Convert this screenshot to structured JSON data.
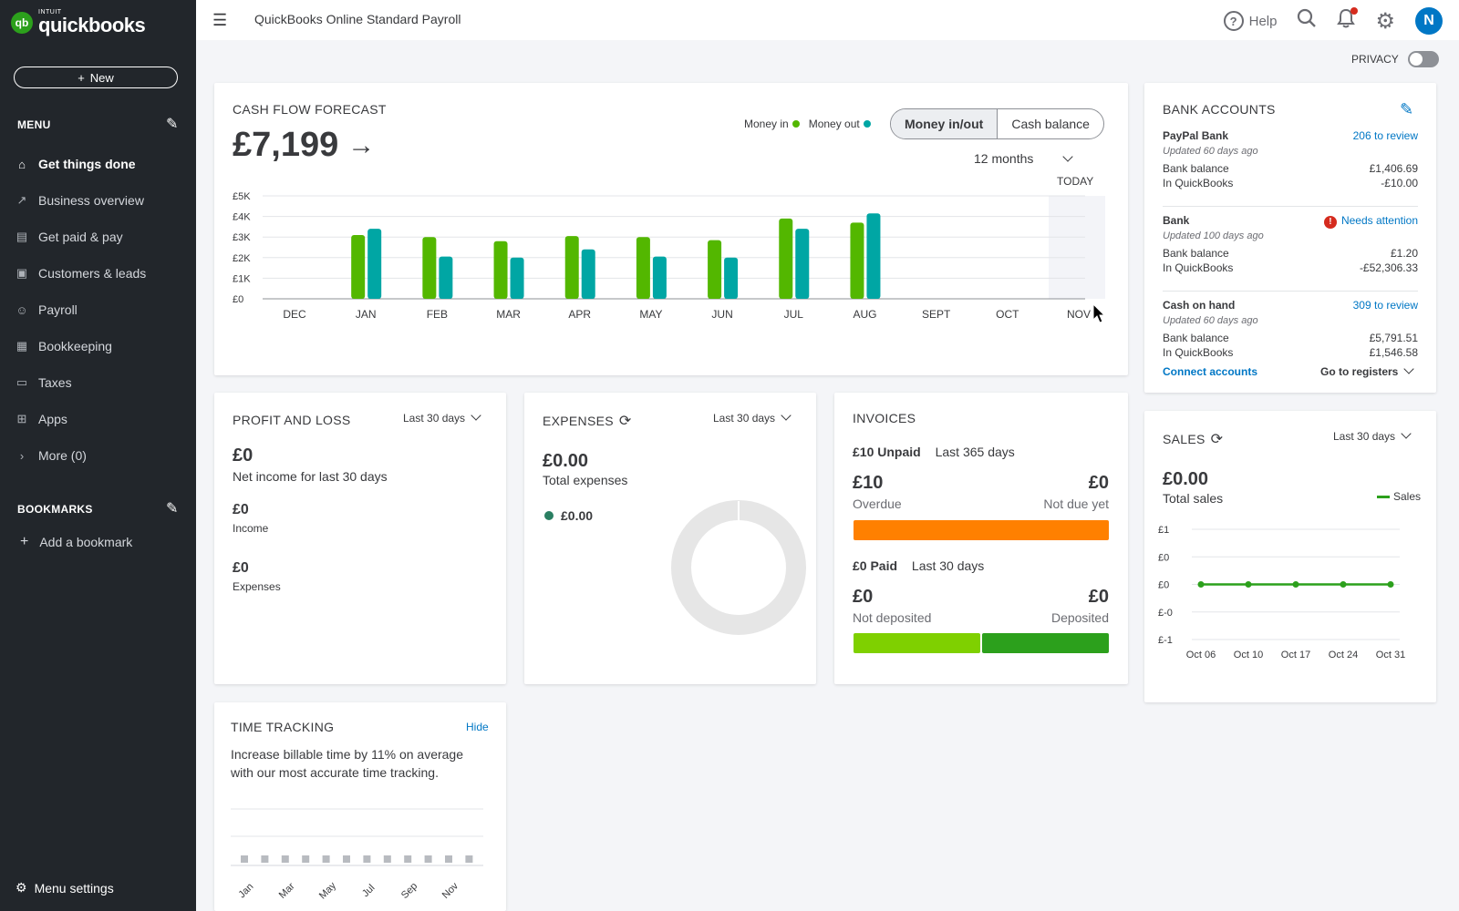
{
  "sidebar": {
    "logo_small": "INTUIT",
    "logo_big": "quickbooks",
    "new_label": "New",
    "menu_title": "MENU",
    "items": [
      {
        "label": "Get things done",
        "icon": "home-icon",
        "glyph": "⌂"
      },
      {
        "label": "Business overview",
        "icon": "chart-line-icon",
        "glyph": "↗"
      },
      {
        "label": "Get paid & pay",
        "icon": "invoice-icon",
        "glyph": "▤"
      },
      {
        "label": "Customers & leads",
        "icon": "contacts-icon",
        "glyph": "▣"
      },
      {
        "label": "Payroll",
        "icon": "person-icon",
        "glyph": "☺"
      },
      {
        "label": "Bookkeeping",
        "icon": "ledger-icon",
        "glyph": "▦"
      },
      {
        "label": "Taxes",
        "icon": "tax-icon",
        "glyph": "▭"
      },
      {
        "label": "Apps",
        "icon": "apps-grid-icon",
        "glyph": "⊞"
      },
      {
        "label": "More (0)",
        "icon": "chevron-right-icon",
        "glyph": "›"
      }
    ],
    "bookmarks_title": "BOOKMARKS",
    "add_bookmark": "Add a bookmark",
    "menu_settings": "Menu settings"
  },
  "topbar": {
    "title": "QuickBooks Online Standard Payroll",
    "help": "Help",
    "avatar": "N"
  },
  "privacy": "PRIVACY",
  "cashflow": {
    "title": "CASH FLOW FORECAST",
    "amount": "£7,199",
    "legend_in": "Money in",
    "legend_out": "Money out",
    "seg_on": "Money in/out",
    "seg_off": "Cash balance",
    "period": "12 months",
    "today": "TODAY"
  },
  "chart_data": [
    {
      "type": "bar",
      "title": "CASH FLOW FORECAST",
      "categories": [
        "DEC",
        "JAN",
        "FEB",
        "MAR",
        "APR",
        "MAY",
        "JUN",
        "JUL",
        "AUG",
        "SEPT",
        "OCT",
        "NOV"
      ],
      "yticks": [
        "£5K",
        "£4K",
        "£3K",
        "£2K",
        "£1K",
        "£0"
      ],
      "ylim": [
        0,
        5000
      ],
      "series": [
        {
          "name": "Money in",
          "color": "#53b700",
          "values": [
            0,
            3100,
            3000,
            2800,
            3050,
            3000,
            2850,
            3900,
            3700,
            0,
            0,
            0
          ]
        },
        {
          "name": "Money out",
          "color": "#00a6a4",
          "values": [
            0,
            3400,
            2050,
            2000,
            2400,
            2050,
            2000,
            3400,
            4150,
            0,
            0,
            0
          ]
        }
      ]
    },
    {
      "type": "line",
      "title": "SALES",
      "x": [
        "Oct 06",
        "Oct 10",
        "Oct 17",
        "Oct 24",
        "Oct 31"
      ],
      "yticks": [
        "£1",
        "£0",
        "£0",
        "£-0",
        "£-1"
      ],
      "ylim": [
        -1,
        1
      ],
      "series": [
        {
          "name": "Sales",
          "color": "#2ca01c",
          "values": [
            0,
            0,
            0,
            0,
            0
          ]
        }
      ]
    }
  ],
  "bank": {
    "title": "BANK ACCOUNTS",
    "accounts": [
      {
        "name": "PayPal Bank",
        "status": "206 to review",
        "updated": "Updated 60 days ago",
        "bank_label": "Bank balance",
        "bank_value": "£1,406.69",
        "qb_label": "In QuickBooks",
        "qb_value": "-£10.00"
      },
      {
        "name": "Bank",
        "status": "Needs attention",
        "updated": "Updated 100 days ago",
        "bank_label": "Bank balance",
        "bank_value": "£1.20",
        "qb_label": "In QuickBooks",
        "qb_value": "-£52,306.33"
      },
      {
        "name": "Cash on hand",
        "status": "309 to review",
        "updated": "Updated 60 days ago",
        "bank_label": "Bank balance",
        "bank_value": "£5,791.51",
        "qb_label": "In QuickBooks",
        "qb_value": "£1,546.58"
      }
    ],
    "connect": "Connect accounts",
    "registers": "Go to registers"
  },
  "pl": {
    "title": "PROFIT AND LOSS",
    "period": "Last 30 days",
    "net": "£0",
    "net_label": "Net income for last 30 days",
    "income": "£0",
    "income_label": "Income",
    "expenses": "£0",
    "expenses_label": "Expenses"
  },
  "expenses": {
    "title": "EXPENSES",
    "period": "Last 30 days",
    "total": "£0.00",
    "total_label": "Total expenses",
    "item_value": "£0.00"
  },
  "invoices": {
    "title": "INVOICES",
    "unpaid": "£10 Unpaid",
    "unpaid_period": "Last 365 days",
    "overdue_value": "£10",
    "overdue_label": "Overdue",
    "notdue_value": "£0",
    "notdue_label": "Not due yet",
    "paid": "£0 Paid",
    "paid_period": "Last 30 days",
    "notdep_value": "£0",
    "notdep_label": "Not deposited",
    "dep_value": "£0",
    "dep_label": "Deposited",
    "colors": {
      "overdue": "#ff8000",
      "not_deposited": "#7fd000",
      "deposited": "#2ca01c"
    }
  },
  "sales": {
    "title": "SALES",
    "period": "Last 30 days",
    "total": "£0.00",
    "total_label": "Total sales",
    "legend": "Sales"
  },
  "time": {
    "title": "TIME TRACKING",
    "hide": "Hide",
    "text": "Increase billable time by 11% on average with our most accurate time tracking.",
    "months": [
      "Jan",
      "Mar",
      "May",
      "Jul",
      "Sep",
      "Nov"
    ]
  }
}
